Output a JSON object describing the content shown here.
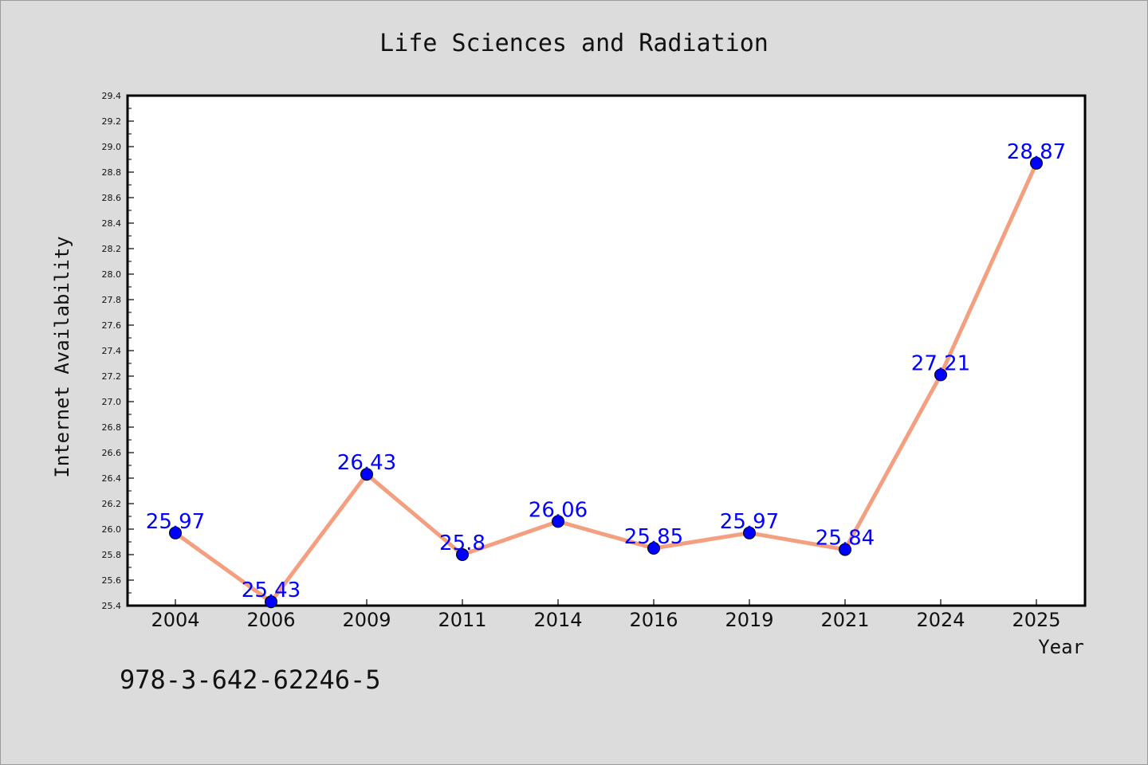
{
  "chart_data": {
    "type": "line",
    "title": "Life Sciences and Radiation",
    "xlabel": "Year",
    "ylabel": "Internet Availability",
    "categories": [
      "2004",
      "2006",
      "2009",
      "2011",
      "2014",
      "2016",
      "2019",
      "2021",
      "2024",
      "2025"
    ],
    "values": [
      25.97,
      25.43,
      26.43,
      25.8,
      26.06,
      25.85,
      25.97,
      25.84,
      27.21,
      28.87
    ],
    "data_labels": [
      "25.97",
      "25.43",
      "26.43",
      "25.8",
      "26.06",
      "25.85",
      "25.97",
      "25.84",
      "27.21",
      "28.87"
    ],
    "ylim": [
      25.4,
      29.4
    ],
    "yticks": [
      "25.4",
      "25.6",
      "25.8",
      "26.0",
      "26.2",
      "26.4",
      "26.6",
      "26.8",
      "27.0",
      "27.2",
      "27.4",
      "27.6",
      "27.8",
      "28.0",
      "28.2",
      "28.4",
      "28.6",
      "28.8",
      "29.0",
      "29.2",
      "29.4"
    ],
    "grid": false,
    "line_color": "#f4a080",
    "marker_color": "#0000ff"
  },
  "footer": {
    "isbn": "978-3-642-62246-5"
  }
}
